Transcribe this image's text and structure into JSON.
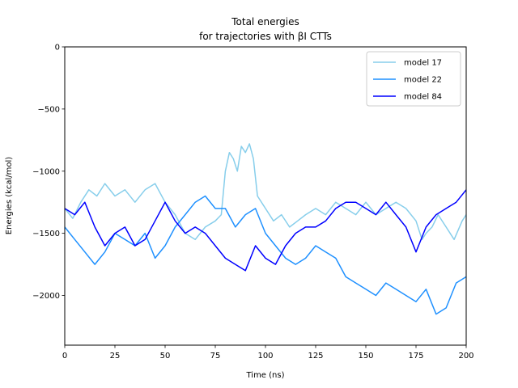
{
  "chart_data": {
    "type": "line",
    "title": [
      "Total energies",
      "for trajectories with βI CTTs"
    ],
    "xlabel": "Time (ns)",
    "ylabel": "Energies (kcal/mol)",
    "xlim": [
      0,
      200
    ],
    "ylim": [
      -2400,
      0
    ],
    "xticks": [
      0,
      25,
      50,
      75,
      100,
      125,
      150,
      175,
      200
    ],
    "yticks": [
      0,
      -500,
      -1000,
      -1500,
      -2000
    ],
    "ytick_labels": [
      "0",
      "−500",
      "−1000",
      "−1500",
      "−2000"
    ],
    "grid": false,
    "legend_position": "upper right",
    "series": [
      {
        "name": "model 17",
        "color": "#87ceeb",
        "x": [
          0,
          4,
          8,
          12,
          16,
          20,
          25,
          30,
          35,
          40,
          45,
          50,
          55,
          60,
          65,
          70,
          75,
          78,
          80,
          82,
          84,
          86,
          88,
          90,
          92,
          94,
          96,
          100,
          104,
          108,
          112,
          116,
          120,
          125,
          130,
          135,
          140,
          145,
          150,
          155,
          160,
          165,
          170,
          175,
          178,
          180,
          183,
          186,
          190,
          194,
          198,
          200
        ],
        "y": [
          -1300,
          -1380,
          -1250,
          -1150,
          -1200,
          -1100,
          -1200,
          -1150,
          -1250,
          -1150,
          -1100,
          -1250,
          -1350,
          -1500,
          -1550,
          -1450,
          -1400,
          -1350,
          -1000,
          -850,
          -900,
          -1000,
          -800,
          -850,
          -780,
          -900,
          -1200,
          -1300,
          -1400,
          -1350,
          -1450,
          -1400,
          -1350,
          -1300,
          -1350,
          -1250,
          -1300,
          -1350,
          -1250,
          -1350,
          -1300,
          -1250,
          -1300,
          -1400,
          -1550,
          -1500,
          -1450,
          -1350,
          -1450,
          -1550,
          -1400,
          -1350
        ]
      },
      {
        "name": "model 22",
        "color": "#1e90ff",
        "x": [
          0,
          5,
          10,
          15,
          20,
          25,
          30,
          35,
          40,
          45,
          50,
          55,
          60,
          65,
          70,
          75,
          80,
          85,
          90,
          95,
          100,
          105,
          110,
          115,
          120,
          125,
          130,
          135,
          140,
          145,
          150,
          155,
          160,
          165,
          170,
          175,
          180,
          185,
          190,
          195,
          200
        ],
        "y": [
          -1450,
          -1550,
          -1650,
          -1750,
          -1650,
          -1500,
          -1550,
          -1600,
          -1500,
          -1700,
          -1600,
          -1450,
          -1350,
          -1250,
          -1200,
          -1300,
          -1300,
          -1450,
          -1350,
          -1300,
          -1500,
          -1600,
          -1700,
          -1750,
          -1700,
          -1600,
          -1650,
          -1700,
          -1850,
          -1900,
          -1950,
          -2000,
          -1900,
          -1950,
          -2000,
          -2050,
          -1950,
          -2150,
          -2100,
          -1900,
          -1850
        ]
      },
      {
        "name": "model 84",
        "color": "#0000ff",
        "x": [
          0,
          5,
          10,
          15,
          20,
          25,
          30,
          35,
          40,
          45,
          50,
          55,
          60,
          65,
          70,
          75,
          80,
          85,
          90,
          95,
          100,
          105,
          110,
          115,
          120,
          125,
          130,
          135,
          140,
          145,
          150,
          155,
          160,
          165,
          170,
          175,
          180,
          185,
          190,
          195,
          200
        ],
        "y": [
          -1300,
          -1350,
          -1250,
          -1450,
          -1600,
          -1500,
          -1450,
          -1600,
          -1550,
          -1400,
          -1250,
          -1400,
          -1500,
          -1450,
          -1500,
          -1600,
          -1700,
          -1750,
          -1800,
          -1600,
          -1700,
          -1750,
          -1600,
          -1500,
          -1450,
          -1450,
          -1400,
          -1300,
          -1250,
          -1250,
          -1300,
          -1350,
          -1250,
          -1350,
          -1450,
          -1650,
          -1450,
          -1350,
          -1300,
          -1250,
          -1150
        ]
      }
    ]
  }
}
